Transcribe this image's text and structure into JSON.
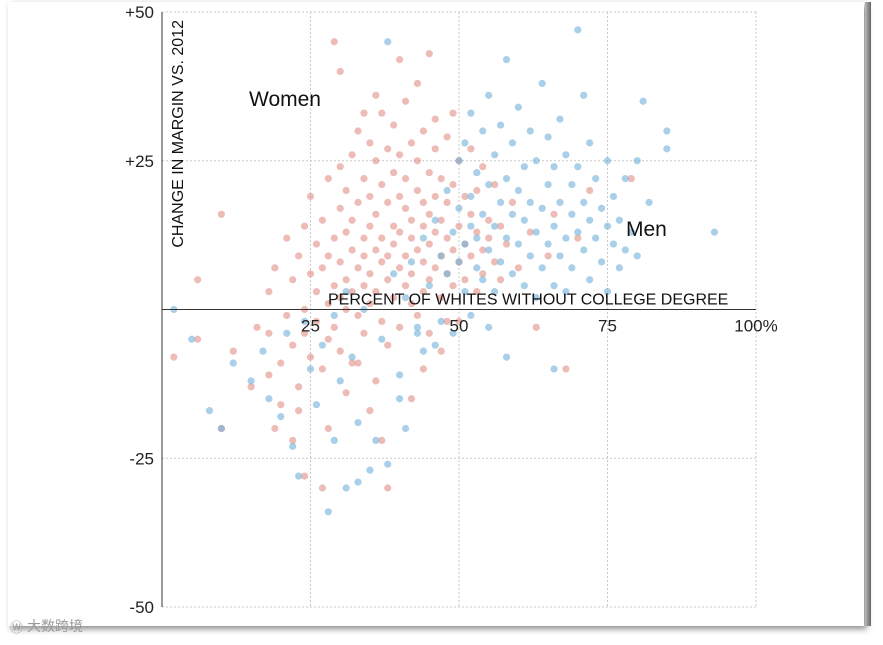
{
  "chart_data": {
    "type": "scatter",
    "title": "",
    "xlabel": "PERCENT OF WHITES WITHOUT COLLEGE DEGREE",
    "ylabel": "CHANGE IN MARGIN VS. 2012",
    "xlim": [
      0,
      100
    ],
    "ylim": [
      -50,
      50
    ],
    "x_ticks": [
      {
        "value": 25,
        "label": "25"
      },
      {
        "value": 50,
        "label": "50"
      },
      {
        "value": 75,
        "label": "75"
      },
      {
        "value": 100,
        "label": "100%"
      }
    ],
    "y_ticks": [
      {
        "value": 50,
        "label": "+50"
      },
      {
        "value": 25,
        "label": "+25"
      },
      {
        "value": -25,
        "label": "-25"
      },
      {
        "value": -50,
        "label": "-50"
      }
    ],
    "grid": true,
    "series": [
      {
        "name": "Women",
        "label": "Women",
        "color": "#e0857a",
        "points": [
          [
            2,
            -8
          ],
          [
            6,
            -5
          ],
          [
            6,
            5
          ],
          [
            10,
            -20
          ],
          [
            10,
            16
          ],
          [
            12,
            -7
          ],
          [
            15,
            -13
          ],
          [
            16,
            -3
          ],
          [
            18,
            -11
          ],
          [
            18,
            -4
          ],
          [
            18,
            3
          ],
          [
            19,
            7
          ],
          [
            20,
            -9
          ],
          [
            20,
            -16
          ],
          [
            21,
            -1
          ],
          [
            21,
            12
          ],
          [
            22,
            5
          ],
          [
            22,
            -6
          ],
          [
            23,
            -13
          ],
          [
            23,
            9
          ],
          [
            24,
            14
          ],
          [
            24,
            0
          ],
          [
            24,
            -4
          ],
          [
            25,
            6
          ],
          [
            25,
            -8
          ],
          [
            25,
            19
          ],
          [
            26,
            3
          ],
          [
            26,
            11
          ],
          [
            26,
            -2
          ],
          [
            27,
            7
          ],
          [
            27,
            -10
          ],
          [
            27,
            15
          ],
          [
            28,
            1
          ],
          [
            28,
            22
          ],
          [
            28,
            -5
          ],
          [
            28,
            9
          ],
          [
            29,
            12
          ],
          [
            29,
            4
          ],
          [
            29,
            -3
          ],
          [
            29,
            45
          ],
          [
            30,
            2
          ],
          [
            30,
            17
          ],
          [
            30,
            8
          ],
          [
            30,
            -7
          ],
          [
            30,
            24
          ],
          [
            31,
            13
          ],
          [
            31,
            5
          ],
          [
            31,
            0
          ],
          [
            31,
            20
          ],
          [
            32,
            10
          ],
          [
            32,
            26
          ],
          [
            32,
            3
          ],
          [
            32,
            -9
          ],
          [
            32,
            15
          ],
          [
            33,
            7
          ],
          [
            33,
            18
          ],
          [
            33,
            -1
          ],
          [
            33,
            30
          ],
          [
            34,
            12
          ],
          [
            34,
            4
          ],
          [
            34,
            22
          ],
          [
            34,
            -4
          ],
          [
            34,
            9
          ],
          [
            35,
            14
          ],
          [
            35,
            28
          ],
          [
            35,
            1
          ],
          [
            35,
            19
          ],
          [
            35,
            6
          ],
          [
            36,
            10
          ],
          [
            36,
            -12
          ],
          [
            36,
            25
          ],
          [
            36,
            3
          ],
          [
            36,
            16
          ],
          [
            37,
            8
          ],
          [
            37,
            21
          ],
          [
            37,
            -2
          ],
          [
            37,
            33
          ],
          [
            37,
            12
          ],
          [
            38,
            5
          ],
          [
            38,
            18
          ],
          [
            38,
            27
          ],
          [
            38,
            -6
          ],
          [
            38,
            9
          ],
          [
            39,
            14
          ],
          [
            39,
            2
          ],
          [
            39,
            23
          ],
          [
            39,
            31
          ],
          [
            39,
            11
          ],
          [
            40,
            7
          ],
          [
            40,
            19
          ],
          [
            40,
            -3
          ],
          [
            40,
            26
          ],
          [
            40,
            13
          ],
          [
            41,
            4
          ],
          [
            41,
            17
          ],
          [
            41,
            35
          ],
          [
            41,
            9
          ],
          [
            41,
            22
          ],
          [
            42,
            12
          ],
          [
            42,
            1
          ],
          [
            42,
            28
          ],
          [
            42,
            15
          ],
          [
            42,
            6
          ],
          [
            43,
            20
          ],
          [
            43,
            10
          ],
          [
            43,
            -1
          ],
          [
            43,
            25
          ],
          [
            43,
            38
          ],
          [
            44,
            14
          ],
          [
            44,
            3
          ],
          [
            44,
            18
          ],
          [
            44,
            30
          ],
          [
            44,
            8
          ],
          [
            45,
            11
          ],
          [
            45,
            23
          ],
          [
            45,
            5
          ],
          [
            45,
            16
          ],
          [
            45,
            -4
          ],
          [
            46,
            13
          ],
          [
            46,
            27
          ],
          [
            46,
            7
          ],
          [
            46,
            19
          ],
          [
            47,
            9
          ],
          [
            47,
            22
          ],
          [
            47,
            2
          ],
          [
            47,
            15
          ],
          [
            48,
            12
          ],
          [
            48,
            29
          ],
          [
            48,
            6
          ],
          [
            48,
            18
          ],
          [
            49,
            10
          ],
          [
            49,
            21
          ],
          [
            49,
            4
          ],
          [
            49,
            33
          ],
          [
            50,
            14
          ],
          [
            50,
            8
          ],
          [
            50,
            25
          ],
          [
            50,
            -2
          ],
          [
            51,
            11
          ],
          [
            51,
            19
          ],
          [
            51,
            5
          ],
          [
            52,
            16
          ],
          [
            52,
            9
          ],
          [
            52,
            27
          ],
          [
            53,
            13
          ],
          [
            53,
            3
          ],
          [
            53,
            20
          ],
          [
            54,
            10
          ],
          [
            54,
            24
          ],
          [
            54,
            6
          ],
          [
            55,
            15
          ],
          [
            55,
            12
          ],
          [
            56,
            8
          ],
          [
            56,
            21
          ],
          [
            57,
            14
          ],
          [
            57,
            5
          ],
          [
            58,
            11
          ],
          [
            59,
            18
          ],
          [
            60,
            7
          ],
          [
            62,
            13
          ],
          [
            63,
            -3
          ],
          [
            65,
            9
          ],
          [
            66,
            16
          ],
          [
            68,
            -10
          ],
          [
            70,
            12
          ],
          [
            72,
            20
          ],
          [
            79,
            22
          ],
          [
            35,
            -17
          ],
          [
            38,
            -30
          ],
          [
            37,
            -22
          ],
          [
            42,
            -15
          ],
          [
            31,
            -14
          ],
          [
            27,
            -30
          ],
          [
            28,
            -20
          ],
          [
            33,
            -9
          ],
          [
            48,
            -2
          ],
          [
            47,
            -7
          ],
          [
            44,
            -10
          ],
          [
            45,
            43
          ],
          [
            40,
            42
          ],
          [
            46,
            32
          ],
          [
            36,
            36
          ],
          [
            34,
            33
          ],
          [
            30,
            40
          ],
          [
            23,
            -17
          ],
          [
            24,
            -28
          ],
          [
            22,
            -22
          ],
          [
            19,
            -20
          ]
        ]
      },
      {
        "name": "Men",
        "label": "Men",
        "color": "#6fb0d8",
        "points": [
          [
            2,
            0
          ],
          [
            5,
            -5
          ],
          [
            8,
            -17
          ],
          [
            10,
            -20
          ],
          [
            12,
            -9
          ],
          [
            15,
            -12
          ],
          [
            17,
            -7
          ],
          [
            18,
            -15
          ],
          [
            20,
            -18
          ],
          [
            21,
            -4
          ],
          [
            22,
            -23
          ],
          [
            23,
            -28
          ],
          [
            24,
            -2
          ],
          [
            25,
            -10
          ],
          [
            26,
            -16
          ],
          [
            27,
            -6
          ],
          [
            28,
            -34
          ],
          [
            29,
            -1
          ],
          [
            30,
            -12
          ],
          [
            31,
            3
          ],
          [
            32,
            -8
          ],
          [
            33,
            -19
          ],
          [
            34,
            0
          ],
          [
            35,
            -27
          ],
          [
            36,
            -22
          ],
          [
            37,
            -5
          ],
          [
            38,
            -26
          ],
          [
            38,
            45
          ],
          [
            39,
            6
          ],
          [
            40,
            -11
          ],
          [
            41,
            -20
          ],
          [
            41,
            2
          ],
          [
            42,
            8
          ],
          [
            43,
            -3
          ],
          [
            44,
            12
          ],
          [
            44,
            -7
          ],
          [
            45,
            4
          ],
          [
            46,
            15
          ],
          [
            47,
            9
          ],
          [
            47,
            -2
          ],
          [
            48,
            20
          ],
          [
            48,
            6
          ],
          [
            49,
            13
          ],
          [
            49,
            -4
          ],
          [
            50,
            17
          ],
          [
            50,
            25
          ],
          [
            50,
            8
          ],
          [
            51,
            11
          ],
          [
            51,
            28
          ],
          [
            51,
            3
          ],
          [
            52,
            19
          ],
          [
            52,
            14
          ],
          [
            52,
            33
          ],
          [
            53,
            7
          ],
          [
            53,
            23
          ],
          [
            53,
            12
          ],
          [
            54,
            30
          ],
          [
            54,
            16
          ],
          [
            54,
            5
          ],
          [
            55,
            21
          ],
          [
            55,
            10
          ],
          [
            55,
            36
          ],
          [
            56,
            14
          ],
          [
            56,
            26
          ],
          [
            56,
            3
          ],
          [
            57,
            18
          ],
          [
            57,
            8
          ],
          [
            57,
            31
          ],
          [
            58,
            12
          ],
          [
            58,
            22
          ],
          [
            58,
            42
          ],
          [
            59,
            16
          ],
          [
            59,
            6
          ],
          [
            59,
            28
          ],
          [
            60,
            20
          ],
          [
            60,
            11
          ],
          [
            60,
            34
          ],
          [
            61,
            15
          ],
          [
            61,
            24
          ],
          [
            61,
            4
          ],
          [
            62,
            18
          ],
          [
            62,
            9
          ],
          [
            62,
            30
          ],
          [
            63,
            13
          ],
          [
            63,
            25
          ],
          [
            63,
            2
          ],
          [
            64,
            17
          ],
          [
            64,
            7
          ],
          [
            64,
            38
          ],
          [
            65,
            21
          ],
          [
            65,
            11
          ],
          [
            65,
            29
          ],
          [
            66,
            14
          ],
          [
            66,
            4
          ],
          [
            66,
            24
          ],
          [
            67,
            18
          ],
          [
            67,
            9
          ],
          [
            67,
            32
          ],
          [
            68,
            12
          ],
          [
            68,
            26
          ],
          [
            68,
            3
          ],
          [
            69,
            16
          ],
          [
            69,
            7
          ],
          [
            69,
            21
          ],
          [
            70,
            13
          ],
          [
            70,
            24
          ],
          [
            70,
            47
          ],
          [
            71,
            10
          ],
          [
            71,
            18
          ],
          [
            71,
            36
          ],
          [
            72,
            15
          ],
          [
            72,
            5
          ],
          [
            72,
            28
          ],
          [
            73,
            12
          ],
          [
            73,
            22
          ],
          [
            74,
            8
          ],
          [
            74,
            17
          ],
          [
            75,
            14
          ],
          [
            75,
            3
          ],
          [
            75,
            25
          ],
          [
            76,
            11
          ],
          [
            76,
            19
          ],
          [
            77,
            7
          ],
          [
            77,
            15
          ],
          [
            78,
            10
          ],
          [
            78,
            22
          ],
          [
            79,
            13
          ],
          [
            80,
            9
          ],
          [
            80,
            25
          ],
          [
            81,
            35
          ],
          [
            82,
            18
          ],
          [
            85,
            27
          ],
          [
            85,
            30
          ],
          [
            93,
            13
          ],
          [
            66,
            -10
          ],
          [
            58,
            -8
          ],
          [
            55,
            -3
          ],
          [
            52,
            -1
          ],
          [
            33,
            -29
          ],
          [
            31,
            -30
          ],
          [
            29,
            -22
          ],
          [
            43,
            -4
          ],
          [
            46,
            -6
          ],
          [
            40,
            -15
          ]
        ]
      }
    ]
  },
  "watermark": {
    "icon": "weibo-icon",
    "text": "大数跨境"
  }
}
